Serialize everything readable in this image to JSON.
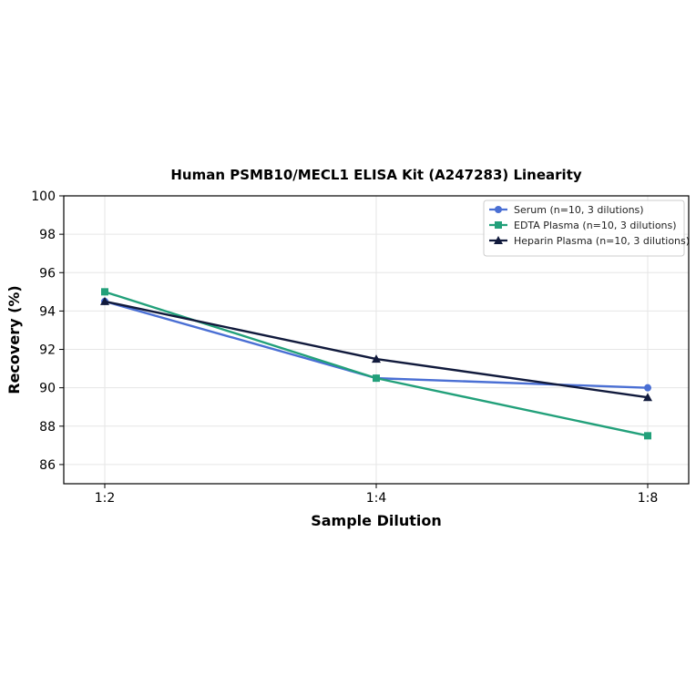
{
  "chart_data": {
    "type": "line",
    "title": "Human PSMB10/MECL1 ELISA Kit (A247283) Linearity",
    "xlabel": "Sample Dilution",
    "ylabel": "Recovery (%)",
    "categories": [
      "1:2",
      "1:4",
      "1:8"
    ],
    "ylim": [
      85,
      100
    ],
    "yticks": [
      86,
      88,
      90,
      92,
      94,
      96,
      98,
      100
    ],
    "grid": true,
    "legend_position": "top-right",
    "series": [
      {
        "name": "Serum (n=10, 3 dilutions)",
        "values": [
          94.5,
          90.5,
          90.0
        ],
        "color": "#4a6fd4",
        "marker": "circle"
      },
      {
        "name": "EDTA Plasma (n=10, 3 dilutions)",
        "values": [
          95.0,
          90.5,
          87.5
        ],
        "color": "#22a07a",
        "marker": "square"
      },
      {
        "name": "Heparin Plasma (n=10, 3 dilutions)",
        "values": [
          94.5,
          91.5,
          89.5
        ],
        "color": "#111a3c",
        "marker": "triangle"
      }
    ]
  }
}
